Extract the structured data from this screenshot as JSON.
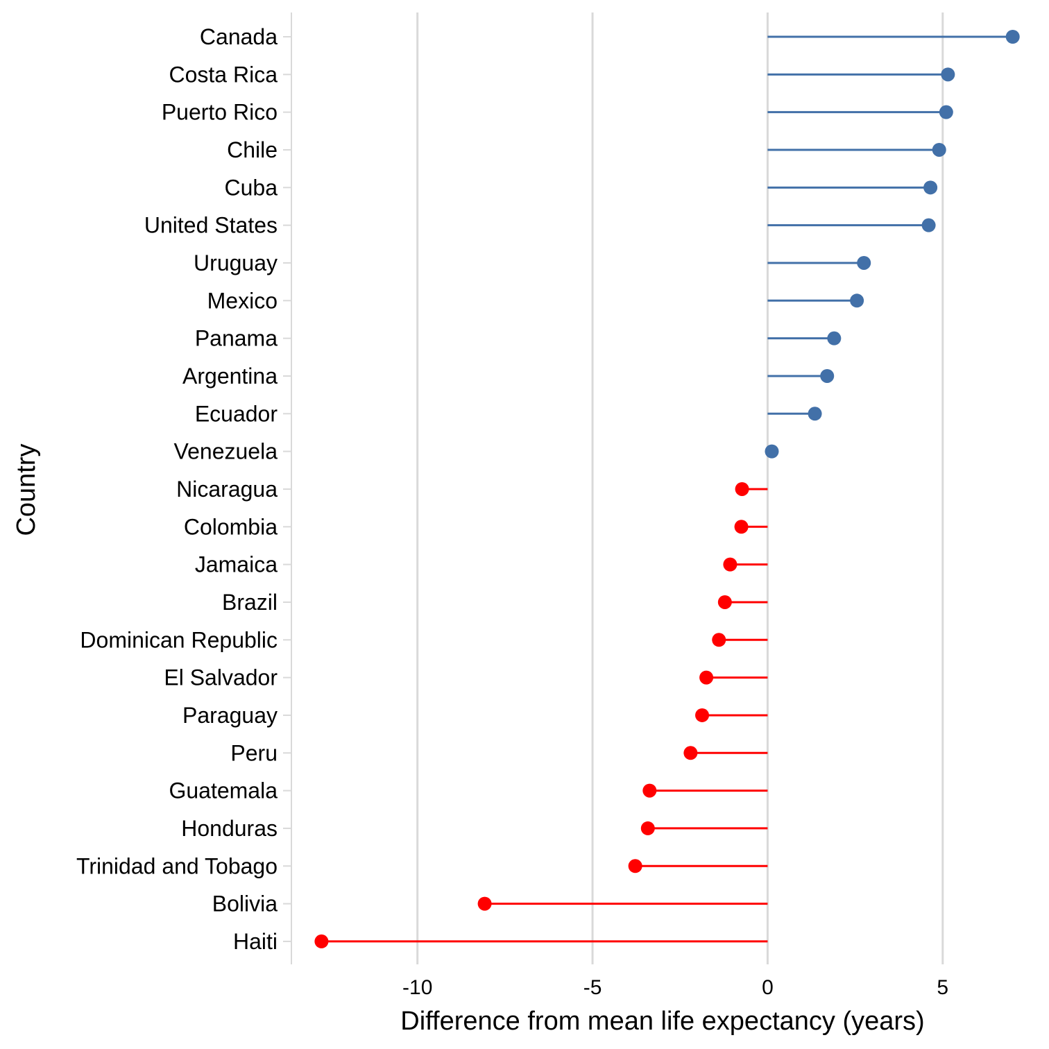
{
  "chart_data": {
    "type": "lollipop",
    "xlabel": "Difference from mean life expectancy (years)",
    "ylabel": "Country",
    "xlim": [
      -13.6,
      7.6
    ],
    "xticks": [
      -10,
      -5,
      0,
      5
    ],
    "xtick_labels": [
      "-10",
      "-5",
      "0",
      "5"
    ],
    "grid": "vertical major gridlines",
    "colors": {
      "positive": "#4270a8",
      "negative": "#ff0000",
      "grid": "#d9d9d9"
    },
    "categories": [
      "Canada",
      "Costa Rica",
      "Puerto Rico",
      "Chile",
      "Cuba",
      "United States",
      "Uruguay",
      "Mexico",
      "Panama",
      "Argentina",
      "Ecuador",
      "Venezuela",
      "Nicaragua",
      "Colombia",
      "Jamaica",
      "Brazil",
      "Dominican Republic",
      "El Salvador",
      "Paraguay",
      "Peru",
      "Guatemala",
      "Honduras",
      "Trinidad and Tobago",
      "Bolivia",
      "Haiti"
    ],
    "values": [
      7.0,
      5.15,
      5.1,
      4.9,
      4.65,
      4.6,
      2.75,
      2.55,
      1.9,
      1.7,
      1.35,
      0.12,
      -0.73,
      -0.75,
      -1.07,
      -1.22,
      -1.39,
      -1.75,
      -1.87,
      -2.2,
      -3.37,
      -3.42,
      -3.78,
      -8.08,
      -12.74
    ]
  }
}
